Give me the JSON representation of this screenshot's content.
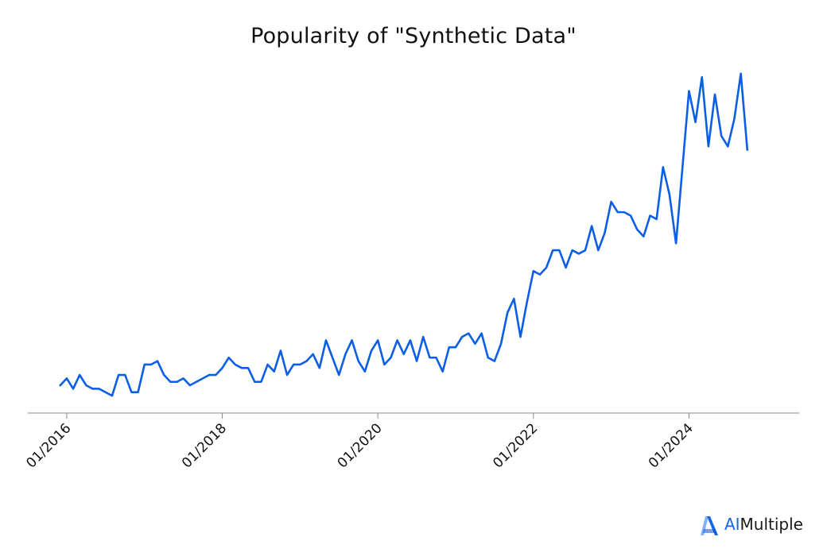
{
  "chart_data": {
    "type": "line",
    "title": "Popularity of \"Synthetic Data\"",
    "xlabel": "",
    "ylabel": "",
    "x_start": "2015-12",
    "x_step": "month",
    "x_tick_labels": [
      "01/2016",
      "01/2018",
      "01/2020",
      "01/2022",
      "01/2024"
    ],
    "xlim": [
      "2015-07",
      "2025-06"
    ],
    "ylim": [
      0,
      100
    ],
    "grid": false,
    "legend": "none",
    "line_color": "#0b5ee6",
    "series": [
      {
        "values": [
          8,
          10,
          7,
          11,
          8,
          7,
          7,
          6,
          5,
          11,
          11,
          6,
          6,
          14,
          14,
          15,
          11,
          9,
          9,
          10,
          8,
          9,
          10,
          11,
          11,
          13,
          16,
          14,
          13,
          13,
          9,
          9,
          14,
          12,
          18,
          11,
          14,
          14,
          15,
          17,
          13,
          21,
          16,
          11,
          17,
          21,
          15,
          12,
          18,
          21,
          14,
          16,
          21,
          17,
          21,
          15,
          22,
          16,
          16,
          12,
          19,
          19,
          22,
          23,
          20,
          23,
          16,
          15,
          20,
          29,
          33,
          22,
          32,
          41,
          40,
          42,
          47,
          47,
          42,
          47,
          46,
          47,
          54,
          47,
          52,
          61,
          58,
          58,
          57,
          53,
          51,
          57,
          56,
          71,
          63,
          49,
          71,
          93,
          84,
          97,
          77,
          92,
          80,
          77,
          85,
          98,
          76
        ]
      }
    ]
  },
  "brand": {
    "prefix": "AI",
    "suffix": "Multiple",
    "logo_icon": "aimultiple-logo-icon",
    "accent": "#1565e8"
  }
}
